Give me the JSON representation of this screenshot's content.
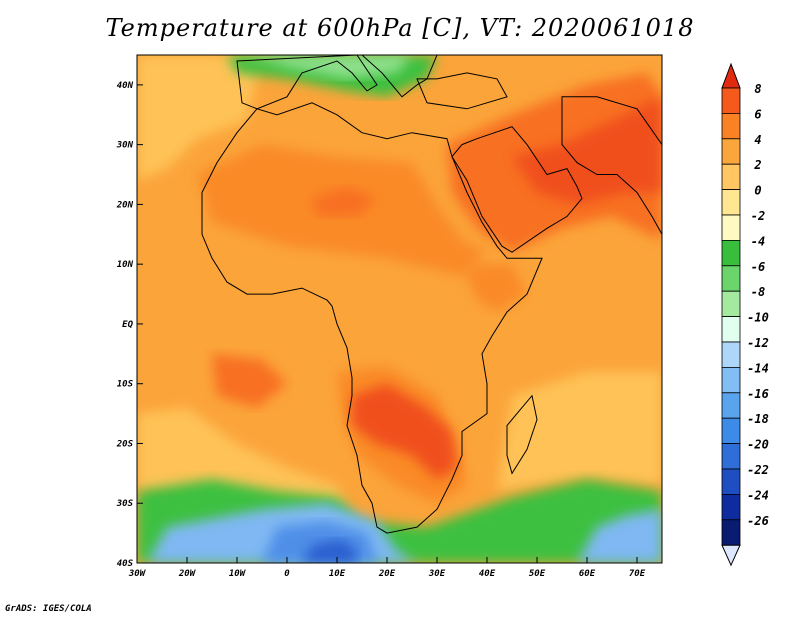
{
  "title": "Temperature at 600hPa [C], VT: 2020061018",
  "credit": "GrADS: IGES/COLA",
  "map": {
    "projection": "lat-lon",
    "lon_range": [
      -30,
      75
    ],
    "lat_range": [
      -40,
      45
    ],
    "lon_ticks": [
      {
        "value": -30,
        "label": "30W"
      },
      {
        "value": -20,
        "label": "20W"
      },
      {
        "value": -10,
        "label": "10W"
      },
      {
        "value": 0,
        "label": "0"
      },
      {
        "value": 10,
        "label": "10E"
      },
      {
        "value": 20,
        "label": "20E"
      },
      {
        "value": 30,
        "label": "30E"
      },
      {
        "value": 40,
        "label": "40E"
      },
      {
        "value": 50,
        "label": "50E"
      },
      {
        "value": 60,
        "label": "60E"
      },
      {
        "value": 70,
        "label": "70E"
      }
    ],
    "lat_ticks": [
      {
        "value": 40,
        "label": "40N"
      },
      {
        "value": 30,
        "label": "30N"
      },
      {
        "value": 20,
        "label": "20N"
      },
      {
        "value": 10,
        "label": "10N"
      },
      {
        "value": 0,
        "label": "EQ"
      },
      {
        "value": -10,
        "label": "10S"
      },
      {
        "value": -20,
        "label": "20S"
      },
      {
        "value": -30,
        "label": "30S"
      },
      {
        "value": -40,
        "label": "40S"
      }
    ],
    "regions": [
      {
        "name": "background",
        "level": 2,
        "coords": [
          [
            -30,
            45
          ],
          [
            75,
            45
          ],
          [
            75,
            -40
          ],
          [
            -30,
            -40
          ]
        ]
      },
      {
        "name": "n-atlantic-moderate",
        "level": 1,
        "coords": [
          [
            -30,
            45
          ],
          [
            -5,
            45
          ],
          [
            -8,
            34
          ],
          [
            -18,
            31
          ],
          [
            -24,
            26
          ],
          [
            -30,
            24
          ]
        ]
      },
      {
        "name": "s-atlantic-moderate",
        "level": 1,
        "coords": [
          [
            -30,
            -15
          ],
          [
            -20,
            -14
          ],
          [
            -10,
            -20
          ],
          [
            0,
            -24
          ],
          [
            10,
            -27
          ],
          [
            12,
            -31
          ],
          [
            0,
            -31
          ],
          [
            -15,
            -30
          ],
          [
            -30,
            -28
          ]
        ]
      },
      {
        "name": "indian-moderate",
        "level": 1,
        "coords": [
          [
            45,
            -12
          ],
          [
            60,
            -8
          ],
          [
            75,
            -8
          ],
          [
            75,
            -27
          ],
          [
            60,
            -26
          ],
          [
            50,
            -27
          ],
          [
            42,
            -28
          ]
        ]
      },
      {
        "name": "north-africa-warm",
        "level": 3,
        "coords": [
          [
            -18,
            25
          ],
          [
            -5,
            30
          ],
          [
            10,
            28
          ],
          [
            25,
            27
          ],
          [
            30,
            20
          ],
          [
            35,
            14
          ],
          [
            40,
            12
          ],
          [
            35,
            8
          ],
          [
            20,
            11
          ],
          [
            0,
            13
          ],
          [
            -15,
            17
          ]
        ]
      },
      {
        "name": "arabia-warm",
        "level": 4,
        "coords": [
          [
            32,
            30
          ],
          [
            45,
            35
          ],
          [
            60,
            40
          ],
          [
            72,
            42
          ],
          [
            75,
            38
          ],
          [
            75,
            14
          ],
          [
            65,
            18
          ],
          [
            55,
            16
          ],
          [
            45,
            12
          ],
          [
            38,
            16
          ],
          [
            33,
            22
          ]
        ]
      },
      {
        "name": "arabia-hot",
        "level": 5,
        "coords": [
          [
            45,
            28
          ],
          [
            55,
            30
          ],
          [
            65,
            34
          ],
          [
            75,
            38
          ],
          [
            75,
            22
          ],
          [
            68,
            22
          ],
          [
            58,
            20
          ],
          [
            50,
            22
          ]
        ]
      },
      {
        "name": "east-africa-warm",
        "level": 3,
        "coords": [
          [
            35,
            10
          ],
          [
            45,
            10
          ],
          [
            48,
            5
          ],
          [
            42,
            2
          ],
          [
            38,
            4
          ]
        ]
      },
      {
        "name": "sahel-warm",
        "level": 4,
        "coords": [
          [
            5,
            21
          ],
          [
            12,
            23
          ],
          [
            18,
            21
          ],
          [
            14,
            18
          ],
          [
            6,
            18
          ]
        ]
      },
      {
        "name": "southern-africa-warm",
        "level": 3,
        "coords": [
          [
            10,
            -8
          ],
          [
            20,
            -7
          ],
          [
            30,
            -12
          ],
          [
            34,
            -20
          ],
          [
            36,
            -27
          ],
          [
            30,
            -30
          ],
          [
            22,
            -27
          ],
          [
            14,
            -22
          ],
          [
            11,
            -15
          ]
        ]
      },
      {
        "name": "southern-africa-hot",
        "level": 5,
        "coords": [
          [
            13,
            -12
          ],
          [
            20,
            -10
          ],
          [
            28,
            -14
          ],
          [
            33,
            -18
          ],
          [
            34,
            -24
          ],
          [
            30,
            -26
          ],
          [
            25,
            -22
          ],
          [
            18,
            -20
          ],
          [
            13,
            -17
          ]
        ]
      },
      {
        "name": "atlantic-warm-patch",
        "level": 4,
        "coords": [
          [
            -15,
            -5
          ],
          [
            -5,
            -6
          ],
          [
            0,
            -10
          ],
          [
            -6,
            -14
          ],
          [
            -14,
            -12
          ]
        ]
      },
      {
        "name": "s-atlantic-cool",
        "level": -1,
        "coords": [
          [
            -30,
            -28
          ],
          [
            -15,
            -26
          ],
          [
            -2,
            -28
          ],
          [
            10,
            -29
          ],
          [
            15,
            -33
          ],
          [
            28,
            -34
          ],
          [
            45,
            -29
          ],
          [
            60,
            -26
          ],
          [
            75,
            -28
          ],
          [
            75,
            -40
          ],
          [
            -30,
            -40
          ]
        ]
      },
      {
        "name": "med-cool",
        "level": -1,
        "coords": [
          [
            -12,
            45
          ],
          [
            30,
            45
          ],
          [
            28,
            41
          ],
          [
            20,
            38
          ],
          [
            12,
            39
          ],
          [
            0,
            41
          ],
          [
            -10,
            42
          ]
        ]
      },
      {
        "name": "med-cooler",
        "level": -2,
        "coords": [
          [
            -8,
            45
          ],
          [
            25,
            45
          ],
          [
            22,
            42
          ],
          [
            12,
            41
          ],
          [
            0,
            43
          ]
        ]
      },
      {
        "name": "s-cold-1",
        "level": -4,
        "coords": [
          [
            -28,
            -40
          ],
          [
            -24,
            -34
          ],
          [
            -5,
            -31
          ],
          [
            8,
            -30
          ],
          [
            18,
            -33
          ],
          [
            22,
            -38
          ],
          [
            26,
            -40
          ]
        ]
      },
      {
        "name": "s-cold-2",
        "level": -5,
        "coords": [
          [
            -5,
            -40
          ],
          [
            -2,
            -34
          ],
          [
            8,
            -33
          ],
          [
            16,
            -35
          ],
          [
            18,
            -40
          ]
        ]
      },
      {
        "name": "s-cold-3",
        "level": -6,
        "coords": [
          [
            3,
            -40
          ],
          [
            5,
            -37
          ],
          [
            11,
            -36
          ],
          [
            14,
            -38
          ],
          [
            14,
            -40
          ]
        ]
      },
      {
        "name": "indian-cold",
        "level": -4,
        "coords": [
          [
            58,
            -40
          ],
          [
            62,
            -34
          ],
          [
            68,
            -32
          ],
          [
            75,
            -31
          ],
          [
            75,
            -40
          ]
        ]
      }
    ],
    "coastline": [
      [
        -6,
        36
      ],
      [
        -10,
        32
      ],
      [
        -14,
        27
      ],
      [
        -17,
        22
      ],
      [
        -17,
        15
      ],
      [
        -15,
        11
      ],
      [
        -12,
        7
      ],
      [
        -8,
        5
      ],
      [
        -3,
        5
      ],
      [
        3,
        6
      ],
      [
        8,
        4
      ],
      [
        9,
        3
      ],
      [
        10,
        0
      ],
      [
        12,
        -4
      ],
      [
        13,
        -9
      ],
      [
        13,
        -12
      ],
      [
        12,
        -17
      ],
      [
        14,
        -22
      ],
      [
        15,
        -27
      ],
      [
        17,
        -30
      ],
      [
        18,
        -34
      ],
      [
        20,
        -35
      ],
      [
        26,
        -34
      ],
      [
        30,
        -31
      ],
      [
        33,
        -26
      ],
      [
        35,
        -22
      ],
      [
        35,
        -18
      ],
      [
        40,
        -15
      ],
      [
        40,
        -10
      ],
      [
        39,
        -5
      ],
      [
        41,
        -2
      ],
      [
        44,
        2
      ],
      [
        48,
        5
      ],
      [
        51,
        11
      ],
      [
        44,
        11
      ],
      [
        42,
        13
      ],
      [
        39,
        17
      ],
      [
        36,
        22
      ],
      [
        33,
        28
      ],
      [
        32,
        31
      ],
      [
        25,
        32
      ],
      [
        20,
        31
      ],
      [
        15,
        32
      ],
      [
        10,
        35
      ],
      [
        5,
        37
      ],
      [
        -2,
        35
      ],
      [
        -6,
        36
      ]
    ],
    "madagascar": [
      [
        49,
        -12
      ],
      [
        50,
        -16
      ],
      [
        48,
        -21
      ],
      [
        45,
        -25
      ],
      [
        44,
        -22
      ],
      [
        44,
        -17
      ],
      [
        47,
        -14
      ]
    ],
    "arabia": [
      [
        33,
        28
      ],
      [
        35,
        30
      ],
      [
        38,
        31
      ],
      [
        45,
        33
      ],
      [
        48,
        30
      ],
      [
        52,
        25
      ],
      [
        56,
        26
      ],
      [
        58,
        23
      ],
      [
        59,
        21
      ],
      [
        56,
        18
      ],
      [
        52,
        16
      ],
      [
        45,
        12
      ],
      [
        43,
        13
      ],
      [
        39,
        18
      ],
      [
        36,
        24
      ]
    ],
    "south_asia": [
      [
        62,
        25
      ],
      [
        66,
        25
      ],
      [
        70,
        22
      ],
      [
        73,
        18
      ],
      [
        75,
        15
      ],
      [
        75,
        30
      ],
      [
        70,
        36
      ],
      [
        62,
        38
      ],
      [
        55,
        38
      ],
      [
        55,
        30
      ],
      [
        58,
        27
      ]
    ],
    "europe": [
      [
        -10,
        44
      ],
      [
        -9,
        37
      ],
      [
        -6,
        36
      ],
      [
        0,
        38
      ],
      [
        3,
        42
      ],
      [
        10,
        44
      ],
      [
        13,
        42
      ],
      [
        16,
        39
      ],
      [
        18,
        40
      ],
      [
        14,
        45
      ]
    ],
    "balkans": [
      [
        15,
        45
      ],
      [
        19,
        42
      ],
      [
        23,
        38
      ],
      [
        26,
        40
      ],
      [
        28,
        41
      ],
      [
        30,
        45
      ]
    ],
    "turkey": [
      [
        26,
        41
      ],
      [
        30,
        41
      ],
      [
        36,
        42
      ],
      [
        42,
        41
      ],
      [
        44,
        38
      ],
      [
        36,
        36
      ],
      [
        28,
        37
      ]
    ]
  },
  "colorbar": {
    "levels": [
      "8",
      "6",
      "4",
      "2",
      "0",
      "-2",
      "-4",
      "-6",
      "-8",
      "-10",
      "-12",
      "-14",
      "-16",
      "-18",
      "-20",
      "-22",
      "-24",
      "-26"
    ],
    "colors_top_to_bottom": [
      "#e12a10",
      "#f55a1c",
      "#fa8225",
      "#fba63c",
      "#ffc663",
      "#ffe690",
      "#fffac2",
      "#38bd3c",
      "#6ad56b",
      "#a3ea9f",
      "#e0ffef",
      "#aed6f8",
      "#82bdf4",
      "#5aa4ee",
      "#3c8be6",
      "#2f6ed9",
      "#1f4ec3",
      "#0e2c9f",
      "#0a1b72"
    ],
    "bottom_color": "#dde8ff"
  }
}
